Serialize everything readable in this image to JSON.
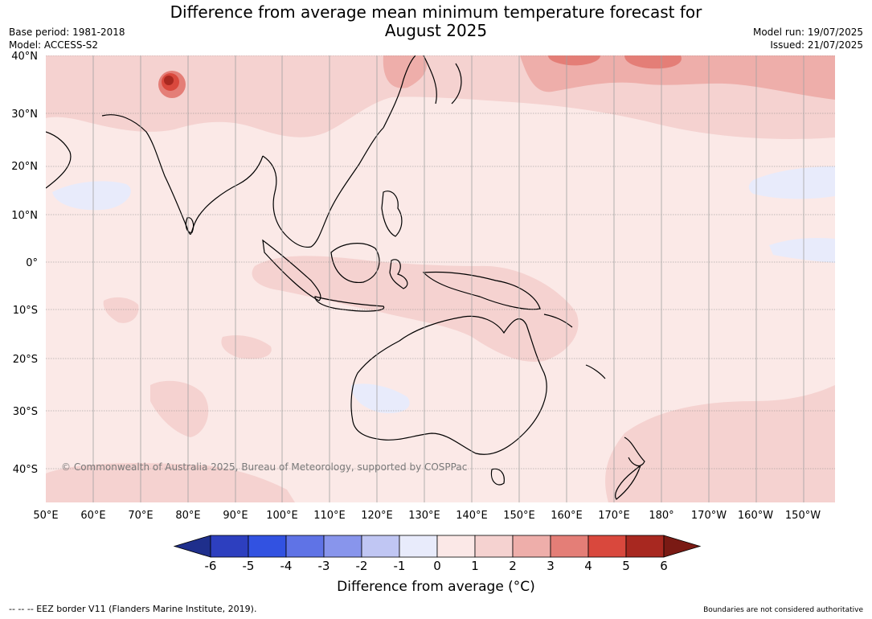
{
  "header": {
    "title_line1": "Difference from average mean minimum temperature forecast for",
    "title_line2": "August 2025",
    "base_period": "Base period: 1981-2018",
    "model": "Model: ACCESS-S2",
    "model_run": "Model run: 19/07/2025",
    "issued": "Issued: 21/07/2025"
  },
  "map": {
    "lat_labels": [
      "40°N",
      "30°N",
      "20°N",
      "10°N",
      "0°",
      "10°S",
      "20°S",
      "30°S",
      "40°S"
    ],
    "lon_labels": [
      "50°E",
      "60°E",
      "70°E",
      "80°E",
      "90°E",
      "100°E",
      "110°E",
      "120°E",
      "130°E",
      "140°E",
      "150°E",
      "160°E",
      "170°E",
      "180°",
      "170°W",
      "160°W",
      "150°W"
    ],
    "copyright": "© Commonwealth of Australia 2025, Bureau of Meteorology, supported by COSPPac",
    "colors": {
      "background_anomaly": "#fbe9e7",
      "land_outline": "#000000",
      "grid": "#888888"
    }
  },
  "colorbar": {
    "ticks": [
      "-6",
      "-5",
      "-4",
      "-3",
      "-2",
      "-1",
      "0",
      "1",
      "2",
      "3",
      "4",
      "5",
      "6"
    ],
    "colors": [
      "#1f2f8c",
      "#2d3fbf",
      "#3252e1",
      "#5f73e6",
      "#8895ec",
      "#c0c6f3",
      "#e8ebfb",
      "#fbe8e7",
      "#f5d2d0",
      "#eeaeaa",
      "#e47e77",
      "#d9483d",
      "#a82820",
      "#7a1a14"
    ],
    "label": "Difference from average (°C)"
  },
  "footer": {
    "eez_note": "--  --  -- EEZ border V11 (Flanders Marine Institute, 2019).",
    "boundaries_note": "Boundaries are not considered authoritative"
  }
}
